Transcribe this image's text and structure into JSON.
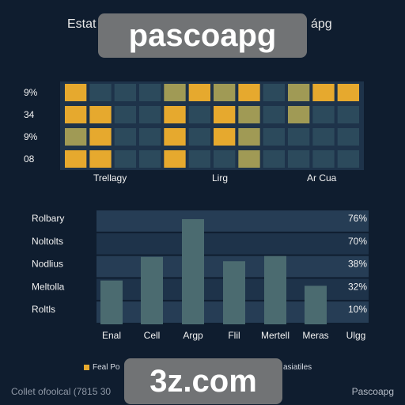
{
  "header": {
    "title_left": "Estat",
    "title_right": "ápg",
    "banner_top": "pascoapg",
    "banner_bottom": "3z.com"
  },
  "colors": {
    "background": "#0f1d2f",
    "highlight": "#e6a92e",
    "muted_highlight": "#a09a55",
    "cell": "#2c4a5c",
    "band_light": "#263d55",
    "band_dark": "#1e334a",
    "bar": "#4b6b70"
  },
  "chart_data": [
    {
      "type": "heatmap",
      "title": "",
      "ylabels": [
        "9%",
        "34",
        "9%",
        "08"
      ],
      "xlabels": [
        "Trellagy",
        "Lirg",
        "Ar Cua"
      ],
      "legend": "none",
      "grid": false,
      "cells": [
        [
          "highlight",
          "cell",
          "cell",
          "cell",
          "muted",
          "highlight",
          "muted",
          "highlight",
          "cell",
          "muted",
          "highlight",
          "highlight"
        ],
        [
          "highlight",
          "highlight",
          "cell",
          "cell",
          "highlight",
          "cell",
          "highlight",
          "muted",
          "cell",
          "muted",
          "cell",
          "cell"
        ],
        [
          "muted",
          "highlight",
          "cell",
          "cell",
          "highlight",
          "cell",
          "highlight",
          "muted",
          "cell",
          "cell",
          "cell",
          "cell"
        ],
        [
          "highlight",
          "highlight",
          "cell",
          "cell",
          "highlight",
          "cell",
          "cell",
          "muted",
          "cell",
          "cell",
          "cell",
          "cell"
        ]
      ]
    },
    {
      "type": "bar",
      "title": "",
      "categories": [
        "Enal",
        "Cell",
        "Argp",
        "Flil",
        "Mertell",
        "Meras",
        "Ulgg"
      ],
      "values": [
        50,
        77,
        120,
        72,
        78,
        44,
        0
      ],
      "ylim": [
        0,
        130
      ],
      "left_labels": [
        "Rolbary",
        "Noltolts",
        "Nodlius",
        "Meltolla",
        "Roltls"
      ],
      "right_labels": [
        "76%",
        "70%",
        "38%",
        "32%",
        "10%"
      ],
      "legend": "bottom-left",
      "legend_entries": [
        "Feal Po"
      ],
      "grid": false
    }
  ],
  "footer": {
    "text_left": "Collet ofoolcal (7815 30",
    "text_right": "Pascoapg",
    "legend_tail": "asiatiles"
  }
}
